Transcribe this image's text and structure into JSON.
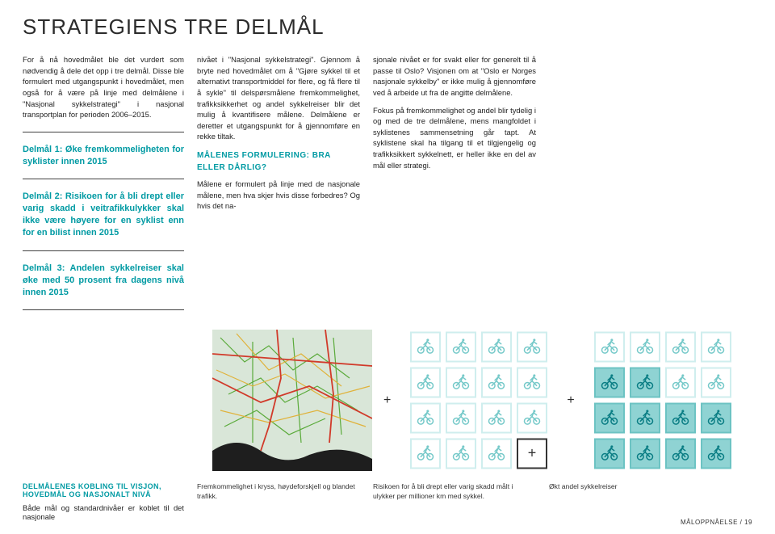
{
  "title": "STRATEGIENS TRE DELMÅL",
  "col1": {
    "intro": "For å nå hovedmålet ble det vurdert som nødvendig å dele det opp i tre delmål. Disse ble formulert med utgangspunkt i hovedmålet, men også for å være på linje med delmålene i \"Nasjonal sykkelstrategi\" i nasjonal transportplan for perioden 2006–2015.",
    "delmal1": "Delmål 1: Øke fremkommeligheten for syklister innen 2015",
    "delmal2": "Delmål 2: Risikoen for å bli drept eller varig skadd i veitrafikkulykker skal ikke være høyere for en syklist enn for en bilist innen 2015",
    "delmal3": "Delmål 3: Andelen sykkelreiser skal øke med 50 prosent fra dagens nivå innen 2015",
    "kobling_head": "DELMÅLENES KOBLING TIL VISJON, HOVEDMÅL OG NASJONALT NIVÅ",
    "kobling_text": "Både mål og standardnivåer er koblet til det nasjonale"
  },
  "col2": {
    "p1": "nivået i \"Nasjonal sykkelstrategi\". Gjennom å bryte ned hovedmålet om å \"Gjøre sykkel til et alternativt transportmiddel for flere, og få flere til å sykle\" til delspørsmålene fremkommelighet, trafikksikkerhet og andel sykkelreiser blir det mulig å kvantifisere målene. Delmålene er deretter et utgangspunkt for å gjennomføre en rekke tiltak.",
    "sub1": "MÅLENES FORMULERING: BRA ELLER DÅRLIG?",
    "p2": "Målene er formulert på linje med de nasjonale målene, men hva skjer hvis disse forbedres? Og hvis det na-"
  },
  "col3": {
    "p1": "sjonale nivået er for svakt eller for generelt til å passe til Oslo? Visjonen om at \"Oslo er Norges nasjonale sykkelby\" er ikke mulig å gjennomføre ved å arbeide ut fra de angitte delmålene.",
    "p2": "Fokus på fremkommelighet og andel blir tydelig i og med de tre delmålene, mens mangfoldet i syklistenes sammensetning går tapt. At syklistene skal ha tilgang til et tilgjengelig og trafikksikkert sykkelnett, er heller ikke en del av mål eller strategi."
  },
  "figures": {
    "map": {
      "bg": "#d9e6d8",
      "water": "#1e1e1e",
      "roads_red": "#d13a2a",
      "roads_yellow": "#e0b23a",
      "roads_green": "#5aaa3a"
    },
    "grid1": {
      "rows": 4,
      "cols": 4,
      "cell": 36,
      "gap": 8,
      "border": "#8fd3d3",
      "highlight": "#8fd3d3",
      "plus_cell": [
        3,
        3
      ]
    },
    "grid2": {
      "rows": 4,
      "cols": 4,
      "cell": 36,
      "gap": 8,
      "border": "#8fd3d3",
      "highlight": "#8fd3d3",
      "filled_count": 10
    },
    "plus": "+"
  },
  "captions": {
    "c1": "Fremkommelighet i kryss, høydeforskjell og blandet trafikk.",
    "c2": "Risikoen for å bli drept eller varig skadd målt i ulykker per millioner km med sykkel.",
    "c3": "Økt andel sykkelreiser"
  },
  "footer": "MÅLOPPNÅELSE / 19"
}
